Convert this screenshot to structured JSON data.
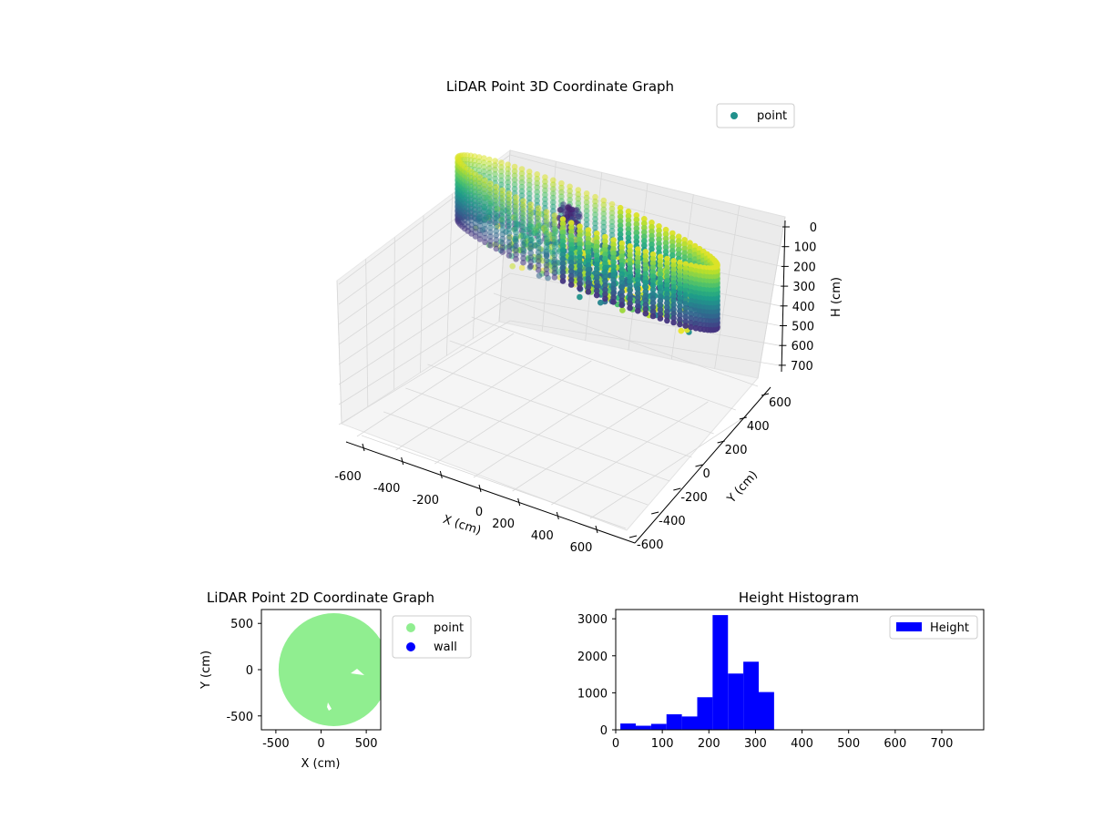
{
  "chart_data": [
    {
      "type": "scatter",
      "title": "LiDAR Point 3D Coordinate Graph",
      "projection": "3d",
      "xlabel": "X (cm)",
      "ylabel": "Y (cm)",
      "zlabel": "H (cm)",
      "xlim": [
        -650,
        650
      ],
      "ylim": [
        -650,
        650
      ],
      "zlim": [
        750,
        0
      ],
      "xticks": [
        "-600",
        "-400",
        "-200",
        "0",
        "200",
        "400",
        "600"
      ],
      "yticks": [
        "-600",
        "-400",
        "-200",
        "0",
        "200",
        "400",
        "600"
      ],
      "zticks": [
        "0",
        "100",
        "200",
        "300",
        "400",
        "500",
        "600",
        "700"
      ],
      "zaxis_inverted": true,
      "colormap": "viridis",
      "grid": true,
      "legend": {
        "location": "upper-right",
        "entries": [
          {
            "label": "point",
            "color": "#21918c"
          }
        ]
      },
      "series": [
        {
          "name": "point",
          "structure": "circular wall ring, radius about 600 cm, heights 0-330 cm, plus interior clutter points"
        }
      ]
    },
    {
      "type": "scatter",
      "title": "LiDAR Point 2D Coordinate Graph",
      "xlabel": "X (cm)",
      "ylabel": "Y (cm)",
      "xlim": [
        -660,
        660
      ],
      "ylim": [
        -650,
        650
      ],
      "xticks": [
        "-500",
        "0",
        "500"
      ],
      "yticks": [
        "-500",
        "0",
        "500"
      ],
      "legend": {
        "location": "outside-right",
        "entries": [
          {
            "label": "point",
            "color": "#90ee90"
          },
          {
            "label": "wall",
            "color": "#0000ff"
          }
        ]
      },
      "series": [
        {
          "name": "point",
          "color": "#90ee90",
          "shape": "filled disc",
          "center": [
            140,
            0
          ],
          "radius": 610
        },
        {
          "name": "wall",
          "color": "#0000ff",
          "points": []
        }
      ]
    },
    {
      "type": "bar",
      "subtype": "histogram",
      "title": "Height Histogram",
      "xlabel": "",
      "ylabel": "",
      "xlim": [
        0,
        790
      ],
      "ylim": [
        0,
        3250
      ],
      "xticks": [
        "0",
        "100",
        "200",
        "300",
        "400",
        "500",
        "600",
        "700"
      ],
      "yticks": [
        "0",
        "1000",
        "2000",
        "3000"
      ],
      "bin_width": 33,
      "bins": [
        {
          "start": 10,
          "value": 170
        },
        {
          "start": 43,
          "value": 110
        },
        {
          "start": 76,
          "value": 160
        },
        {
          "start": 109,
          "value": 420
        },
        {
          "start": 142,
          "value": 360
        },
        {
          "start": 175,
          "value": 880
        },
        {
          "start": 208,
          "value": 3100
        },
        {
          "start": 241,
          "value": 1520
        },
        {
          "start": 274,
          "value": 1840
        },
        {
          "start": 307,
          "value": 1020
        }
      ],
      "color": "#0000ff",
      "legend": {
        "location": "upper-right",
        "entries": [
          {
            "label": "Height",
            "color": "#0000ff"
          }
        ]
      }
    }
  ]
}
